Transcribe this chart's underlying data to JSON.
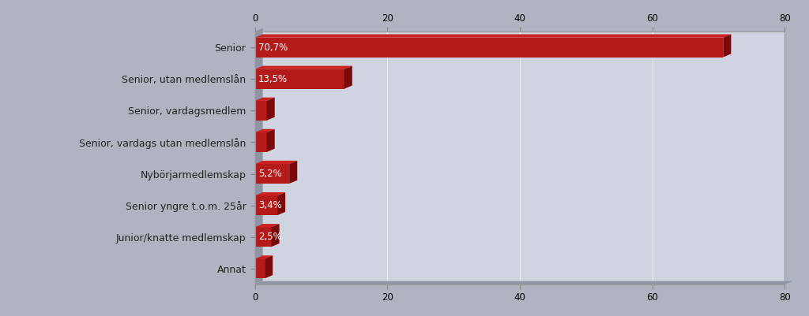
{
  "categories": [
    "Annat",
    "Junior/knatte medlemskap",
    "Senior yngre t.o.m. 25år",
    "Nybörjarmedlemskap",
    "Senior, vardags utan medlemslån",
    "Senior, vardagsmedlem",
    "Senior, utan medlemslån",
    "Senior"
  ],
  "values": [
    1.5,
    2.5,
    3.4,
    5.2,
    1.8,
    1.8,
    13.5,
    70.7
  ],
  "labels": [
    "",
    "2,5%",
    "3,4%",
    "5,2%",
    "",
    "",
    "13,5%",
    "70,7%"
  ],
  "bar_color_face": "#b31b1b",
  "bar_color_top": "#cc2222",
  "bar_color_right": "#7a0a0a",
  "outer_bg": "#b0b4c0",
  "plot_bg": "#d0d4e0",
  "xlim": [
    0,
    80
  ],
  "xticks": [
    0,
    20,
    40,
    60,
    80
  ],
  "grid_color": "#e8eaf0",
  "text_color": "#222222",
  "label_fontsize": 9,
  "value_fontsize": 8.5
}
